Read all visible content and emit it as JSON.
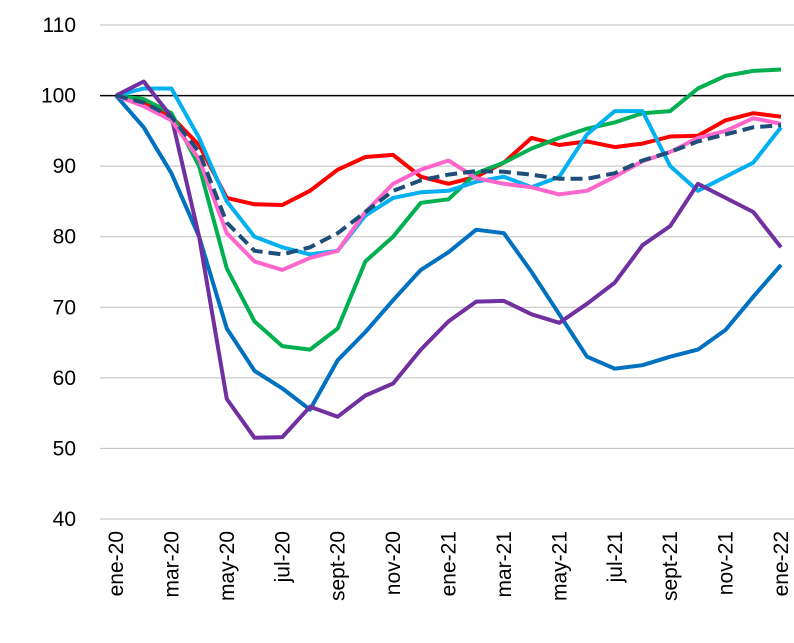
{
  "chart_data": {
    "type": "line",
    "categories": [
      "ene-20",
      null,
      "mar-20",
      null,
      "may-20",
      null,
      "jul-20",
      null,
      "sept-20",
      null,
      "nov-20",
      null,
      "ene-21",
      null,
      "mar-21",
      null,
      "may-21",
      null,
      "jul-21",
      null,
      "sept-21",
      null,
      "nov-21",
      null,
      "ene-22"
    ],
    "series": [
      {
        "color": "#ff0000",
        "values": [
          100,
          99,
          97,
          93,
          85.5,
          84.6,
          84.5,
          86.5,
          89.5,
          91.3,
          91.6,
          88.5,
          87.5,
          88.5,
          90.5,
          94,
          93,
          93.5,
          92.7,
          93.2,
          94.2,
          94.3,
          96.5,
          97.5,
          97
        ]
      },
      {
        "color": "#00b050",
        "values": [
          100,
          99.5,
          97.5,
          90,
          75.5,
          68,
          64.5,
          64,
          67,
          76.5,
          80,
          84.8,
          85.3,
          89,
          90.5,
          92.5,
          94,
          95.3,
          96.2,
          97.5,
          97.8,
          101,
          102.8,
          103.5,
          103.7
        ]
      },
      {
        "color": "#00b0f0",
        "values": [
          100,
          101,
          101,
          94,
          85,
          80,
          78.5,
          77.5,
          78,
          83,
          85.5,
          86.3,
          86.5,
          87.8,
          88.5,
          87,
          88.5,
          94.5,
          97.8,
          97.8,
          90,
          86.5,
          88.5,
          90.5,
          95.5
        ]
      },
      {
        "color": "#0070c0",
        "values": [
          100,
          95.5,
          89,
          80,
          67,
          61,
          58.5,
          55.5,
          62.5,
          66.5,
          71,
          75.3,
          77.8,
          81,
          80.5,
          75,
          69,
          63,
          61.3,
          61.8,
          63,
          64,
          66.8,
          71.5,
          76
        ]
      },
      {
        "color": "#7030a0",
        "values": [
          100,
          102,
          97,
          80,
          57,
          51.5,
          51.6,
          55.9,
          54.5,
          57.5,
          59.2,
          64,
          68,
          70.8,
          70.9,
          69,
          67.8,
          70.5,
          73.5,
          78.8,
          81.5,
          87.5,
          85.5,
          83.5,
          78.5
        ]
      },
      {
        "color": "#ff66cc",
        "values": [
          100,
          98.5,
          96.5,
          91,
          80.5,
          76.5,
          75.3,
          77,
          78,
          83.5,
          87.5,
          89.5,
          90.8,
          88.3,
          87.5,
          87,
          86,
          86.5,
          88.5,
          90.7,
          92,
          94,
          95,
          96.8,
          96
        ]
      },
      {
        "color": "#1f4e79",
        "dashed": true,
        "values": [
          100,
          99,
          97,
          92,
          82,
          78,
          77.5,
          78.5,
          80.5,
          83.5,
          86.5,
          88,
          88.8,
          89.3,
          89.2,
          88.8,
          88.2,
          88.2,
          89,
          90.8,
          92,
          93.5,
          94.5,
          95.5,
          95.8
        ]
      }
    ],
    "ylim": [
      40,
      110
    ],
    "yticks": [
      40,
      50,
      60,
      70,
      80,
      90,
      100,
      110
    ],
    "grid": true,
    "highlight_line": 100
  }
}
